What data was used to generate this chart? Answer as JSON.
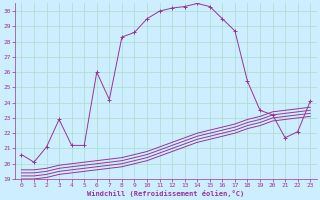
{
  "xlabel": "Windchill (Refroidissement éolien,°C)",
  "bg_color": "#cceeff",
  "line_color": "#993399",
  "grid_color": "#aaddcc",
  "ylim": [
    19,
    30.5
  ],
  "xlim": [
    -0.5,
    23.5
  ],
  "yticks": [
    19,
    20,
    21,
    22,
    23,
    24,
    25,
    26,
    27,
    28,
    29,
    30
  ],
  "xticks": [
    0,
    1,
    2,
    3,
    4,
    5,
    6,
    7,
    8,
    9,
    10,
    11,
    12,
    13,
    14,
    15,
    16,
    17,
    18,
    19,
    20,
    21,
    22,
    23
  ],
  "main_x": [
    0,
    1,
    2,
    3,
    4,
    5,
    6,
    7,
    8,
    9,
    10,
    11,
    12,
    13,
    14,
    15,
    16,
    17,
    18,
    19,
    20,
    21,
    22,
    23
  ],
  "main_y": [
    20.6,
    20.1,
    21.1,
    22.9,
    21.2,
    21.2,
    26.0,
    24.2,
    28.3,
    28.6,
    29.5,
    30.0,
    30.2,
    30.3,
    30.5,
    30.3,
    29.5,
    28.7,
    25.4,
    23.5,
    23.2,
    21.7,
    22.1,
    24.1
  ],
  "flat_lines": [
    [
      19.0,
      19.0,
      19.1,
      19.3,
      19.4,
      19.5,
      19.6,
      19.7,
      19.8,
      20.0,
      20.2,
      20.5,
      20.8,
      21.1,
      21.4,
      21.6,
      21.8,
      22.0,
      22.3,
      22.5,
      22.8,
      22.9,
      23.0,
      23.1
    ],
    [
      19.2,
      19.2,
      19.3,
      19.5,
      19.6,
      19.7,
      19.8,
      19.9,
      20.0,
      20.2,
      20.4,
      20.7,
      21.0,
      21.3,
      21.6,
      21.8,
      22.0,
      22.2,
      22.5,
      22.7,
      23.0,
      23.1,
      23.2,
      23.3
    ],
    [
      19.4,
      19.4,
      19.5,
      19.7,
      19.8,
      19.9,
      20.0,
      20.1,
      20.2,
      20.4,
      20.6,
      20.9,
      21.2,
      21.5,
      21.8,
      22.0,
      22.2,
      22.4,
      22.7,
      22.9,
      23.2,
      23.3,
      23.4,
      23.5
    ],
    [
      19.6,
      19.6,
      19.7,
      19.9,
      20.0,
      20.1,
      20.2,
      20.3,
      20.4,
      20.6,
      20.8,
      21.1,
      21.4,
      21.7,
      22.0,
      22.2,
      22.4,
      22.6,
      22.9,
      23.1,
      23.4,
      23.5,
      23.6,
      23.7
    ]
  ]
}
